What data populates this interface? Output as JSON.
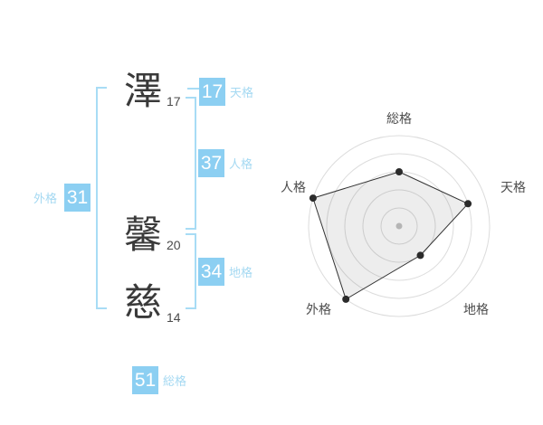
{
  "colors": {
    "accent_blue": "#8ccff2",
    "label_blue": "#a5d9f2",
    "bracket_blue": "#a8dcf5",
    "kanji_dark": "#3a3a3a",
    "stroke_count_gray": "#4a4a4a",
    "chart_label_gray": "#4d4d4d",
    "ring_gray": "#dcdcdc",
    "center_dot_gray": "#c3c3c3",
    "point_dark": "#2b2b2b",
    "polygon_stroke": "#333333"
  },
  "name_diagram": {
    "characters": [
      {
        "char": "澤",
        "strokes": "17"
      },
      {
        "char": "馨",
        "strokes": "20"
      },
      {
        "char": "慈",
        "strokes": "14"
      }
    ],
    "scores": {
      "tenkaku": {
        "value": "17",
        "label": "天格"
      },
      "jinkaku": {
        "value": "37",
        "label": "人格"
      },
      "chikaku": {
        "value": "34",
        "label": "地格"
      },
      "gaikaku": {
        "value": "31",
        "label": "外格"
      },
      "soukaku": {
        "value": "51",
        "label": "総格"
      }
    }
  },
  "chart_data": {
    "type": "radar",
    "axes": [
      "総格",
      "天格",
      "地格",
      "外格",
      "人格"
    ],
    "values": [
      3,
      4,
      2,
      5,
      5
    ],
    "max": 5,
    "rings": 5,
    "value_unit": "rings (luck rating of 5)",
    "grid": "concentric circles, no radial spokes",
    "legend": "none",
    "fill_opacity": 0.07
  }
}
